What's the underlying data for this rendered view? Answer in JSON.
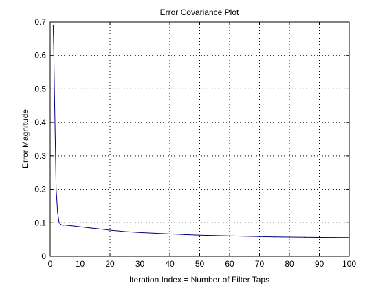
{
  "chart_data": {
    "type": "line",
    "title": "Error Covariance Plot",
    "xlabel": "Iteration Index = Number of Filter Taps",
    "ylabel": "Error Magnitude",
    "xlim": [
      0,
      100
    ],
    "ylim": [
      0,
      0.7
    ],
    "xticks": [
      0,
      10,
      20,
      30,
      40,
      50,
      60,
      70,
      80,
      90,
      100
    ],
    "yticks": [
      0,
      0.1,
      0.2,
      0.3,
      0.4,
      0.5,
      0.6,
      0.7
    ],
    "xtick_labels": [
      "0",
      "10",
      "20",
      "30",
      "40",
      "50",
      "60",
      "70",
      "80",
      "90",
      "100"
    ],
    "ytick_labels": [
      "0",
      "0.1",
      "0.2",
      "0.3",
      "0.4",
      "0.5",
      "0.6",
      "0.7"
    ],
    "grid": true,
    "series": [
      {
        "color": "#000080",
        "x": [
          1,
          1.2,
          1.5,
          1.8,
          2,
          2.5,
          3,
          3.5,
          4,
          5,
          6,
          8,
          10,
          12,
          14,
          16,
          20,
          25,
          30,
          35,
          40,
          45,
          50,
          55,
          60,
          65,
          70,
          75,
          80,
          85,
          90,
          95,
          100
        ],
        "y": [
          0.69,
          0.62,
          0.45,
          0.3,
          0.2,
          0.13,
          0.1,
          0.095,
          0.093,
          0.093,
          0.092,
          0.09,
          0.088,
          0.086,
          0.084,
          0.082,
          0.078,
          0.074,
          0.071,
          0.069,
          0.067,
          0.065,
          0.063,
          0.062,
          0.061,
          0.06,
          0.059,
          0.058,
          0.0575,
          0.057,
          0.0565,
          0.0562,
          0.056
        ]
      }
    ]
  }
}
